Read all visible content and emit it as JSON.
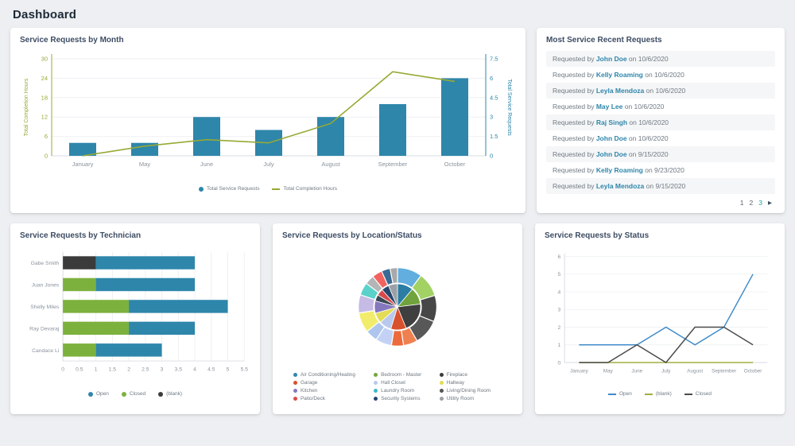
{
  "page": {
    "title": "Dashboard"
  },
  "cards": {
    "month": {
      "title": "Service Requests by Month"
    },
    "recent": {
      "title": "Most Service Recent Requests"
    },
    "technician": {
      "title": "Service Requests by Technician"
    },
    "location": {
      "title": "Service Requests by Location/Status"
    },
    "status": {
      "title": "Service Requests by Status"
    }
  },
  "recent_requests": {
    "prefix": "Requested by",
    "connector": "on",
    "items": [
      {
        "name": "John Doe",
        "date": "10/6/2020"
      },
      {
        "name": "Kelly Roaming",
        "date": "10/6/2020"
      },
      {
        "name": "Leyla Mendoza",
        "date": "10/6/2020"
      },
      {
        "name": "May Lee",
        "date": "10/6/2020"
      },
      {
        "name": "Raj Singh",
        "date": "10/6/2020"
      },
      {
        "name": "John Doe",
        "date": "10/6/2020"
      },
      {
        "name": "John Doe",
        "date": "9/15/2020"
      },
      {
        "name": "Kelly Roaming",
        "date": "9/23/2020"
      },
      {
        "name": "Leyla Mendoza",
        "date": "9/15/2020"
      }
    ],
    "pagination": {
      "pages": [
        "1",
        "2",
        "3"
      ],
      "active_page": "3",
      "next": "▶"
    }
  },
  "chart_data": [
    {
      "id": "month",
      "type": "bar",
      "subtype": "combo-bar-line-dual-axis",
      "title": "Service Requests by Month",
      "categories": [
        "January",
        "May",
        "June",
        "July",
        "August",
        "September",
        "October"
      ],
      "series": [
        {
          "name": "Total Service Requests",
          "type": "bar",
          "axis": "right",
          "color": "#2e86ab",
          "values": [
            1,
            1,
            3,
            2,
            3,
            4,
            6
          ]
        },
        {
          "name": "Total Completion Hours",
          "type": "line",
          "axis": "left",
          "color": "#97a934",
          "values": [
            0,
            3,
            5,
            4,
            10,
            26,
            23
          ]
        }
      ],
      "left_axis": {
        "label": "Total Completion Hours",
        "ticks": [
          0,
          6,
          12,
          18,
          24,
          30
        ],
        "max": 30,
        "color": "#97a934"
      },
      "right_axis": {
        "label": "Total Service Requests",
        "ticks": [
          0,
          1.5,
          3,
          4.5,
          6,
          7.5
        ],
        "max": 7.5,
        "color": "#2e86ab"
      },
      "grid": true,
      "legend_position": "bottom"
    },
    {
      "id": "technician",
      "type": "bar",
      "subtype": "horizontal-stacked",
      "title": "Service Requests by Technician",
      "categories": [
        "Gabe Smith",
        "Juan Jones",
        "Shelly Miles",
        "Ray Devaraj",
        "Candace Li"
      ],
      "series": [
        {
          "name": "Closed",
          "color": "#7cb13d",
          "values": [
            0,
            1,
            2,
            2,
            1
          ]
        },
        {
          "name": "(blank)",
          "color": "#3b3b3b",
          "values": [
            1,
            0,
            0,
            0,
            0
          ]
        },
        {
          "name": "Open",
          "color": "#2e86ab",
          "values": [
            3,
            3,
            3,
            2,
            2
          ]
        }
      ],
      "legend": [
        {
          "label": "Open",
          "color": "#2e86ab"
        },
        {
          "label": "Closed",
          "color": "#7cb13d"
        },
        {
          "label": "(blank)",
          "color": "#3b3b3b"
        }
      ],
      "xticks": [
        0,
        0.5,
        1,
        1.5,
        2,
        2.5,
        3,
        3.5,
        4,
        4.5,
        5,
        5.5
      ],
      "xmax": 5.5,
      "grid": true,
      "legend_position": "bottom"
    },
    {
      "id": "location",
      "type": "pie",
      "subtype": "sunburst-two-ring",
      "title": "Service Requests by Location/Status",
      "legend": [
        {
          "label": "Air Conditioning/Heating",
          "color": "#2e86ab"
        },
        {
          "label": "Bedroom - Master",
          "color": "#76a73c"
        },
        {
          "label": "Fireplace",
          "color": "#3b3b3b"
        },
        {
          "label": "Garage",
          "color": "#d8512c"
        },
        {
          "label": "Hall Closet",
          "color": "#b9c9ee"
        },
        {
          "label": "Hallway",
          "color": "#e3dc55"
        },
        {
          "label": "Kitchen",
          "color": "#8578be"
        },
        {
          "label": "Laundry Room",
          "color": "#3fb8c9"
        },
        {
          "label": "Living/Dining Room",
          "color": "#555555"
        },
        {
          "label": "Patio/Deck",
          "color": "#d94b4b"
        },
        {
          "label": "Security Systems",
          "color": "#27476e"
        },
        {
          "label": "Utility Room",
          "color": "#9aa0a6"
        }
      ],
      "inner_segments": [
        {
          "color": "#2b7da3",
          "start": 0,
          "end": 40
        },
        {
          "color": "#71a33c",
          "start": 40,
          "end": 83
        },
        {
          "color": "#3f3f3f",
          "start": 83,
          "end": 158
        },
        {
          "color": "#d8512c",
          "start": 158,
          "end": 197
        },
        {
          "color": "#b9c9ee",
          "start": 197,
          "end": 228
        },
        {
          "color": "#e3dc55",
          "start": 228,
          "end": 254
        },
        {
          "color": "#8578be",
          "start": 254,
          "end": 285
        },
        {
          "color": "#3c4756",
          "start": 285,
          "end": 301
        },
        {
          "color": "#d94b4b",
          "start": 301,
          "end": 318
        },
        {
          "color": "#27476e",
          "start": 318,
          "end": 337
        },
        {
          "color": "#9aa0a6",
          "start": 337,
          "end": 360
        }
      ],
      "outer_segments": [
        {
          "color": "#62aede",
          "start": 0,
          "end": 37
        },
        {
          "color": "#a2d164",
          "start": 37,
          "end": 73
        },
        {
          "color": "#474747",
          "start": 73,
          "end": 112
        },
        {
          "color": "#585858",
          "start": 112,
          "end": 150
        },
        {
          "color": "#ef8050",
          "start": 150,
          "end": 171
        },
        {
          "color": "#ec6a3c",
          "start": 171,
          "end": 189
        },
        {
          "color": "#c3d2f4",
          "start": 189,
          "end": 213
        },
        {
          "color": "#aec6ee",
          "start": 213,
          "end": 231
        },
        {
          "color": "#f2ec6d",
          "start": 231,
          "end": 261
        },
        {
          "color": "#c6bbe4",
          "start": 261,
          "end": 288
        },
        {
          "color": "#5ad2ca",
          "start": 288,
          "end": 307
        },
        {
          "color": "#b5b5b5",
          "start": 307,
          "end": 321
        },
        {
          "color": "#f2635f",
          "start": 321,
          "end": 336
        },
        {
          "color": "#3a6a95",
          "start": 336,
          "end": 349
        },
        {
          "color": "#a9a9a9",
          "start": 349,
          "end": 360
        }
      ],
      "legend_position": "bottom"
    },
    {
      "id": "status",
      "type": "line",
      "title": "Service Requests by Status",
      "categories": [
        "January",
        "May",
        "June",
        "July",
        "August",
        "September",
        "October"
      ],
      "series": [
        {
          "name": "Open",
          "color": "#3e8bc9",
          "values": [
            1,
            1,
            1,
            2,
            1,
            2,
            5
          ]
        },
        {
          "name": "(blank)",
          "color": "#a3ad3e",
          "values": [
            0,
            0,
            0,
            0,
            0,
            0,
            0
          ]
        },
        {
          "name": "Closed",
          "color": "#4a4a4a",
          "values": [
            0,
            0,
            1,
            0,
            2,
            2,
            1
          ]
        }
      ],
      "yticks": [
        0,
        1,
        2,
        3,
        4,
        5,
        6
      ],
      "ylim": [
        0,
        6
      ],
      "grid": true,
      "legend_position": "bottom"
    }
  ]
}
